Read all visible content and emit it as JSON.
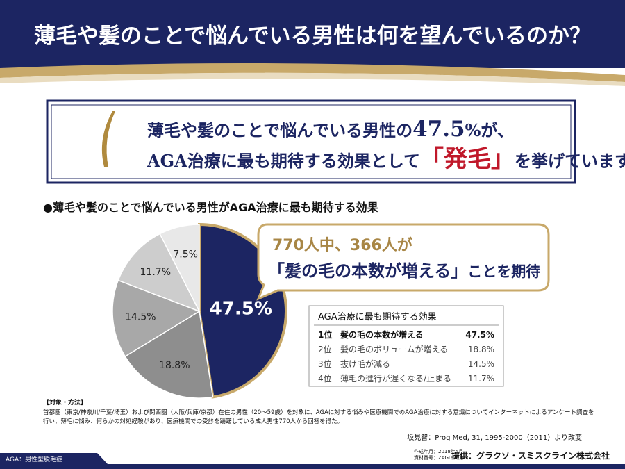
{
  "header": {
    "title": "薄毛や髪のことで悩んでいる男性は何を望んでいるのか？"
  },
  "callout": {
    "line1": [
      "薄毛や髪のことで悩んでいる男性の",
      "47.5",
      "%が、"
    ],
    "line2": [
      "AGA治療に最も期待する効果として",
      "「発毛」",
      "を挙げています。"
    ]
  },
  "chart_data": {
    "type": "pie",
    "title": "●薄毛や髪のことで悩んでいる男性がAGA治療に最も期待する効果",
    "categories": [
      "髪の毛の本数が増える",
      "髪の毛のボリュームが増える",
      "抜け毛が減る",
      "薄毛の進行が遅くなる/止まる",
      null
    ],
    "values": [
      47.5,
      18.8,
      14.5,
      11.7,
      7.5
    ],
    "value_labels": [
      "47.5%",
      "18.8%",
      "14.5%",
      "11.7%",
      "7.5%"
    ],
    "colors": [
      "#1c2562",
      "#8e8e8e",
      "#a8a8a8",
      "#cdcdcd",
      "#e8e8e8"
    ]
  },
  "bubble": {
    "line1": "770人中、366人が",
    "line2": [
      "「髪の毛の本数が増える」",
      "ことを期待"
    ]
  },
  "table": {
    "title": "AGA治療に最も期待する効果",
    "ranks": [
      "1位",
      "2位",
      "3位",
      "4位"
    ]
  },
  "footer": {
    "method_title": "【対象・方法】",
    "method_lines": [
      "首都圏（東京/神奈川/千葉/埼玉）および関西圏（大阪/兵庫/京都）在住の男性（20～59歳）を対象に、AGAに対する悩みや医療機関でのAGA治療に対する意識についてインターネットによるアンケート調査を",
      "行い、薄毛に悩み、何らかの対処経験があり、医療機関での受診を躊躇している成人男性770人から回答を得た。"
    ],
    "source": "坂見智：Prog Med, 31, 1995-2000（2011）より改変",
    "doc_info": [
      "作成年月：2018年5月",
      "資材番号：ZAGL-00143"
    ],
    "provider": "提供：グラクソ・スミスクライン株式会社",
    "abbrev": "AGA：男性型脱毛症"
  }
}
